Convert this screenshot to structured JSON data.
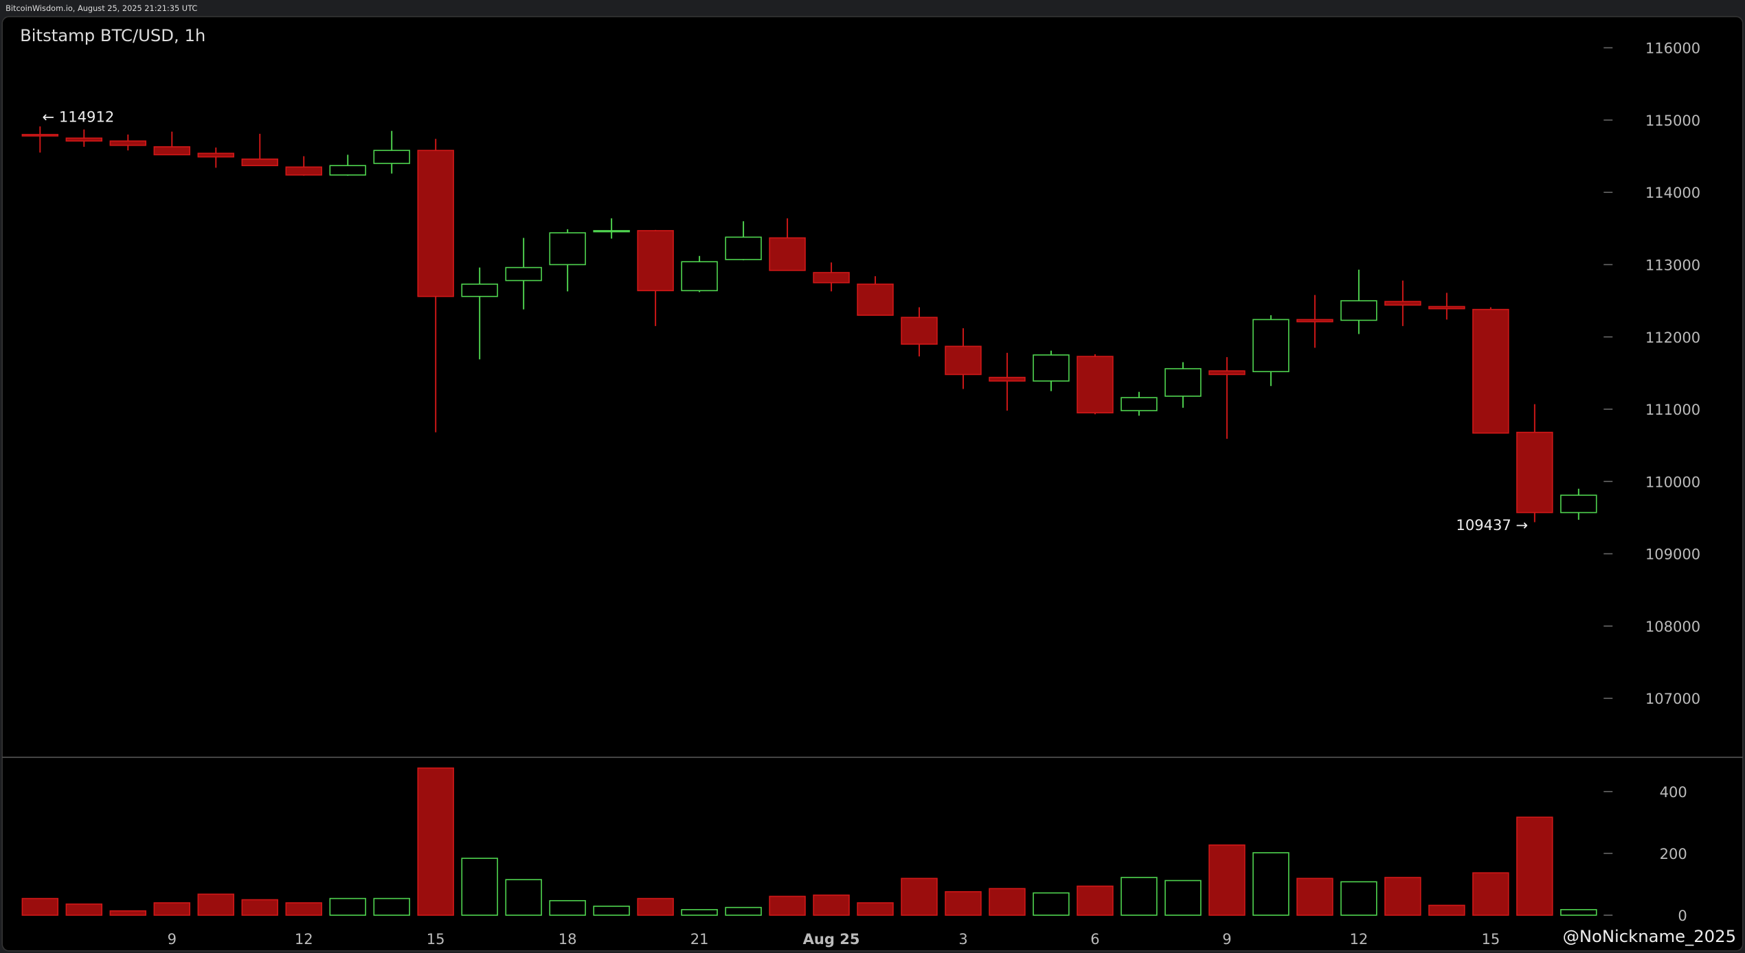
{
  "chart_data": {
    "type": "candlestick",
    "header": "BitcoinWisdom.io, August 25, 2025 21:21:35 UTC",
    "title": "Bitstamp BTC/USD, 1h",
    "watermark": "@NoNickname_2025",
    "categories": [
      null,
      null,
      null,
      "9",
      null,
      null,
      "12",
      null,
      null,
      "15",
      null,
      null,
      "18",
      null,
      null,
      "21",
      null,
      null,
      "Aug 25",
      null,
      null,
      "3",
      null,
      null,
      "6",
      null,
      null,
      "9",
      null,
      null,
      "12",
      null,
      null,
      "15",
      null,
      null
    ],
    "open": [
      114800,
      114750,
      114710,
      114630,
      114540,
      114460,
      114350,
      114240,
      114400,
      114580,
      112560,
      112780,
      113000,
      113460,
      113470,
      112640,
      113070,
      113370,
      112890,
      112730,
      112270,
      111870,
      111440,
      111390,
      111730,
      110980,
      111180,
      111530,
      111520,
      112240,
      112230,
      112490,
      112420,
      112380,
      110680,
      109570
    ],
    "high": [
      114912,
      114870,
      114800,
      114840,
      114620,
      114810,
      114500,
      114520,
      114850,
      114740,
      112960,
      113370,
      113490,
      113640,
      113480,
      113120,
      113600,
      113640,
      113030,
      112840,
      112410,
      112120,
      111780,
      111810,
      111760,
      111240,
      111650,
      111720,
      112300,
      112580,
      112930,
      112780,
      112610,
      112410,
      111070,
      109900
    ],
    "low": [
      114550,
      114630,
      114580,
      114520,
      114340,
      114370,
      114230,
      114230,
      114260,
      110680,
      111690,
      112380,
      112630,
      113360,
      112150,
      112620,
      113060,
      112920,
      112630,
      112300,
      111730,
      111280,
      110980,
      111250,
      110930,
      110910,
      111020,
      110590,
      111320,
      111850,
      112040,
      112150,
      112240,
      110670,
      109437,
      109470
    ],
    "close": [
      114780,
      114710,
      114650,
      114520,
      114490,
      114370,
      114240,
      114370,
      114580,
      112560,
      112730,
      112960,
      113440,
      113470,
      112640,
      113040,
      113380,
      112920,
      112750,
      112300,
      111900,
      111480,
      111390,
      111750,
      110950,
      111160,
      111560,
      111480,
      112240,
      112210,
      112500,
      112440,
      112390,
      110670,
      109570,
      109810
    ],
    "volume": [
      54,
      36,
      14,
      40,
      68,
      50,
      40,
      54,
      54,
      476,
      184,
      115,
      47,
      29,
      54,
      18,
      25,
      61,
      65,
      40,
      119,
      76,
      86,
      72,
      94,
      122,
      112,
      227,
      202,
      119,
      108,
      122,
      32,
      137,
      317,
      18
    ],
    "up_color": "#4fd34f",
    "down_color": "#9b0d0d",
    "ylim": [
      106200,
      116430
    ],
    "yticks": [
      107000,
      108000,
      109000,
      110000,
      111000,
      112000,
      113000,
      114000,
      115000,
      116000
    ],
    "volume_ylim": [
      0,
      500
    ],
    "volume_yticks": [
      0,
      200,
      400
    ],
    "annotations": [
      {
        "label": "← 114912",
        "value": 114912
      },
      {
        "label": "109437 →",
        "value": 109437
      }
    ]
  }
}
